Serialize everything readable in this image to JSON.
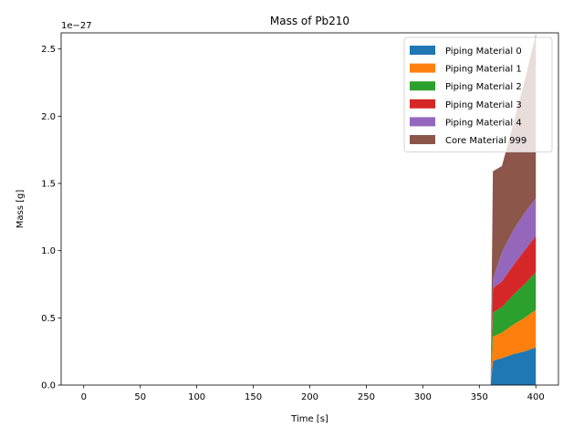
{
  "chart_data": {
    "type": "area",
    "title": "Mass of Pb210",
    "xlabel": "Time [s]",
    "ylabel": "Mass [g]",
    "offset_text": "1e−27",
    "xlim": [
      -20,
      420
    ],
    "ylim": [
      0,
      2.62
    ],
    "xticks": [
      0,
      50,
      100,
      150,
      200,
      250,
      300,
      350,
      400
    ],
    "yticks": [
      0.0,
      0.5,
      1.0,
      1.5,
      2.0,
      2.5
    ],
    "ytick_labels": [
      "0.0",
      "0.5",
      "1.0",
      "1.5",
      "2.0",
      "2.5"
    ],
    "grid": false,
    "legend_position": "top-right",
    "stacked": true,
    "x": [
      0,
      360,
      362,
      370,
      380,
      390,
      400
    ],
    "series": [
      {
        "name": "Piping Material 0",
        "color": "#1f77b4",
        "values": [
          0,
          0,
          0.18,
          0.2,
          0.23,
          0.25,
          0.28
        ]
      },
      {
        "name": "Piping Material 1",
        "color": "#ff7f0e",
        "values": [
          0,
          0,
          0.18,
          0.19,
          0.22,
          0.25,
          0.28
        ]
      },
      {
        "name": "Piping Material 2",
        "color": "#2ca02c",
        "values": [
          0,
          0,
          0.18,
          0.19,
          0.22,
          0.25,
          0.28
        ]
      },
      {
        "name": "Piping Material 3",
        "color": "#d62728",
        "values": [
          0,
          0,
          0.18,
          0.19,
          0.22,
          0.25,
          0.27
        ]
      },
      {
        "name": "Piping Material 4",
        "color": "#9467bd",
        "values": [
          0,
          0,
          0.07,
          0.22,
          0.26,
          0.28,
          0.28
        ]
      },
      {
        "name": "Core Material 999",
        "color": "#8c564b",
        "values": [
          0,
          0,
          0.8,
          0.64,
          0.79,
          0.98,
          1.22
        ]
      }
    ]
  }
}
